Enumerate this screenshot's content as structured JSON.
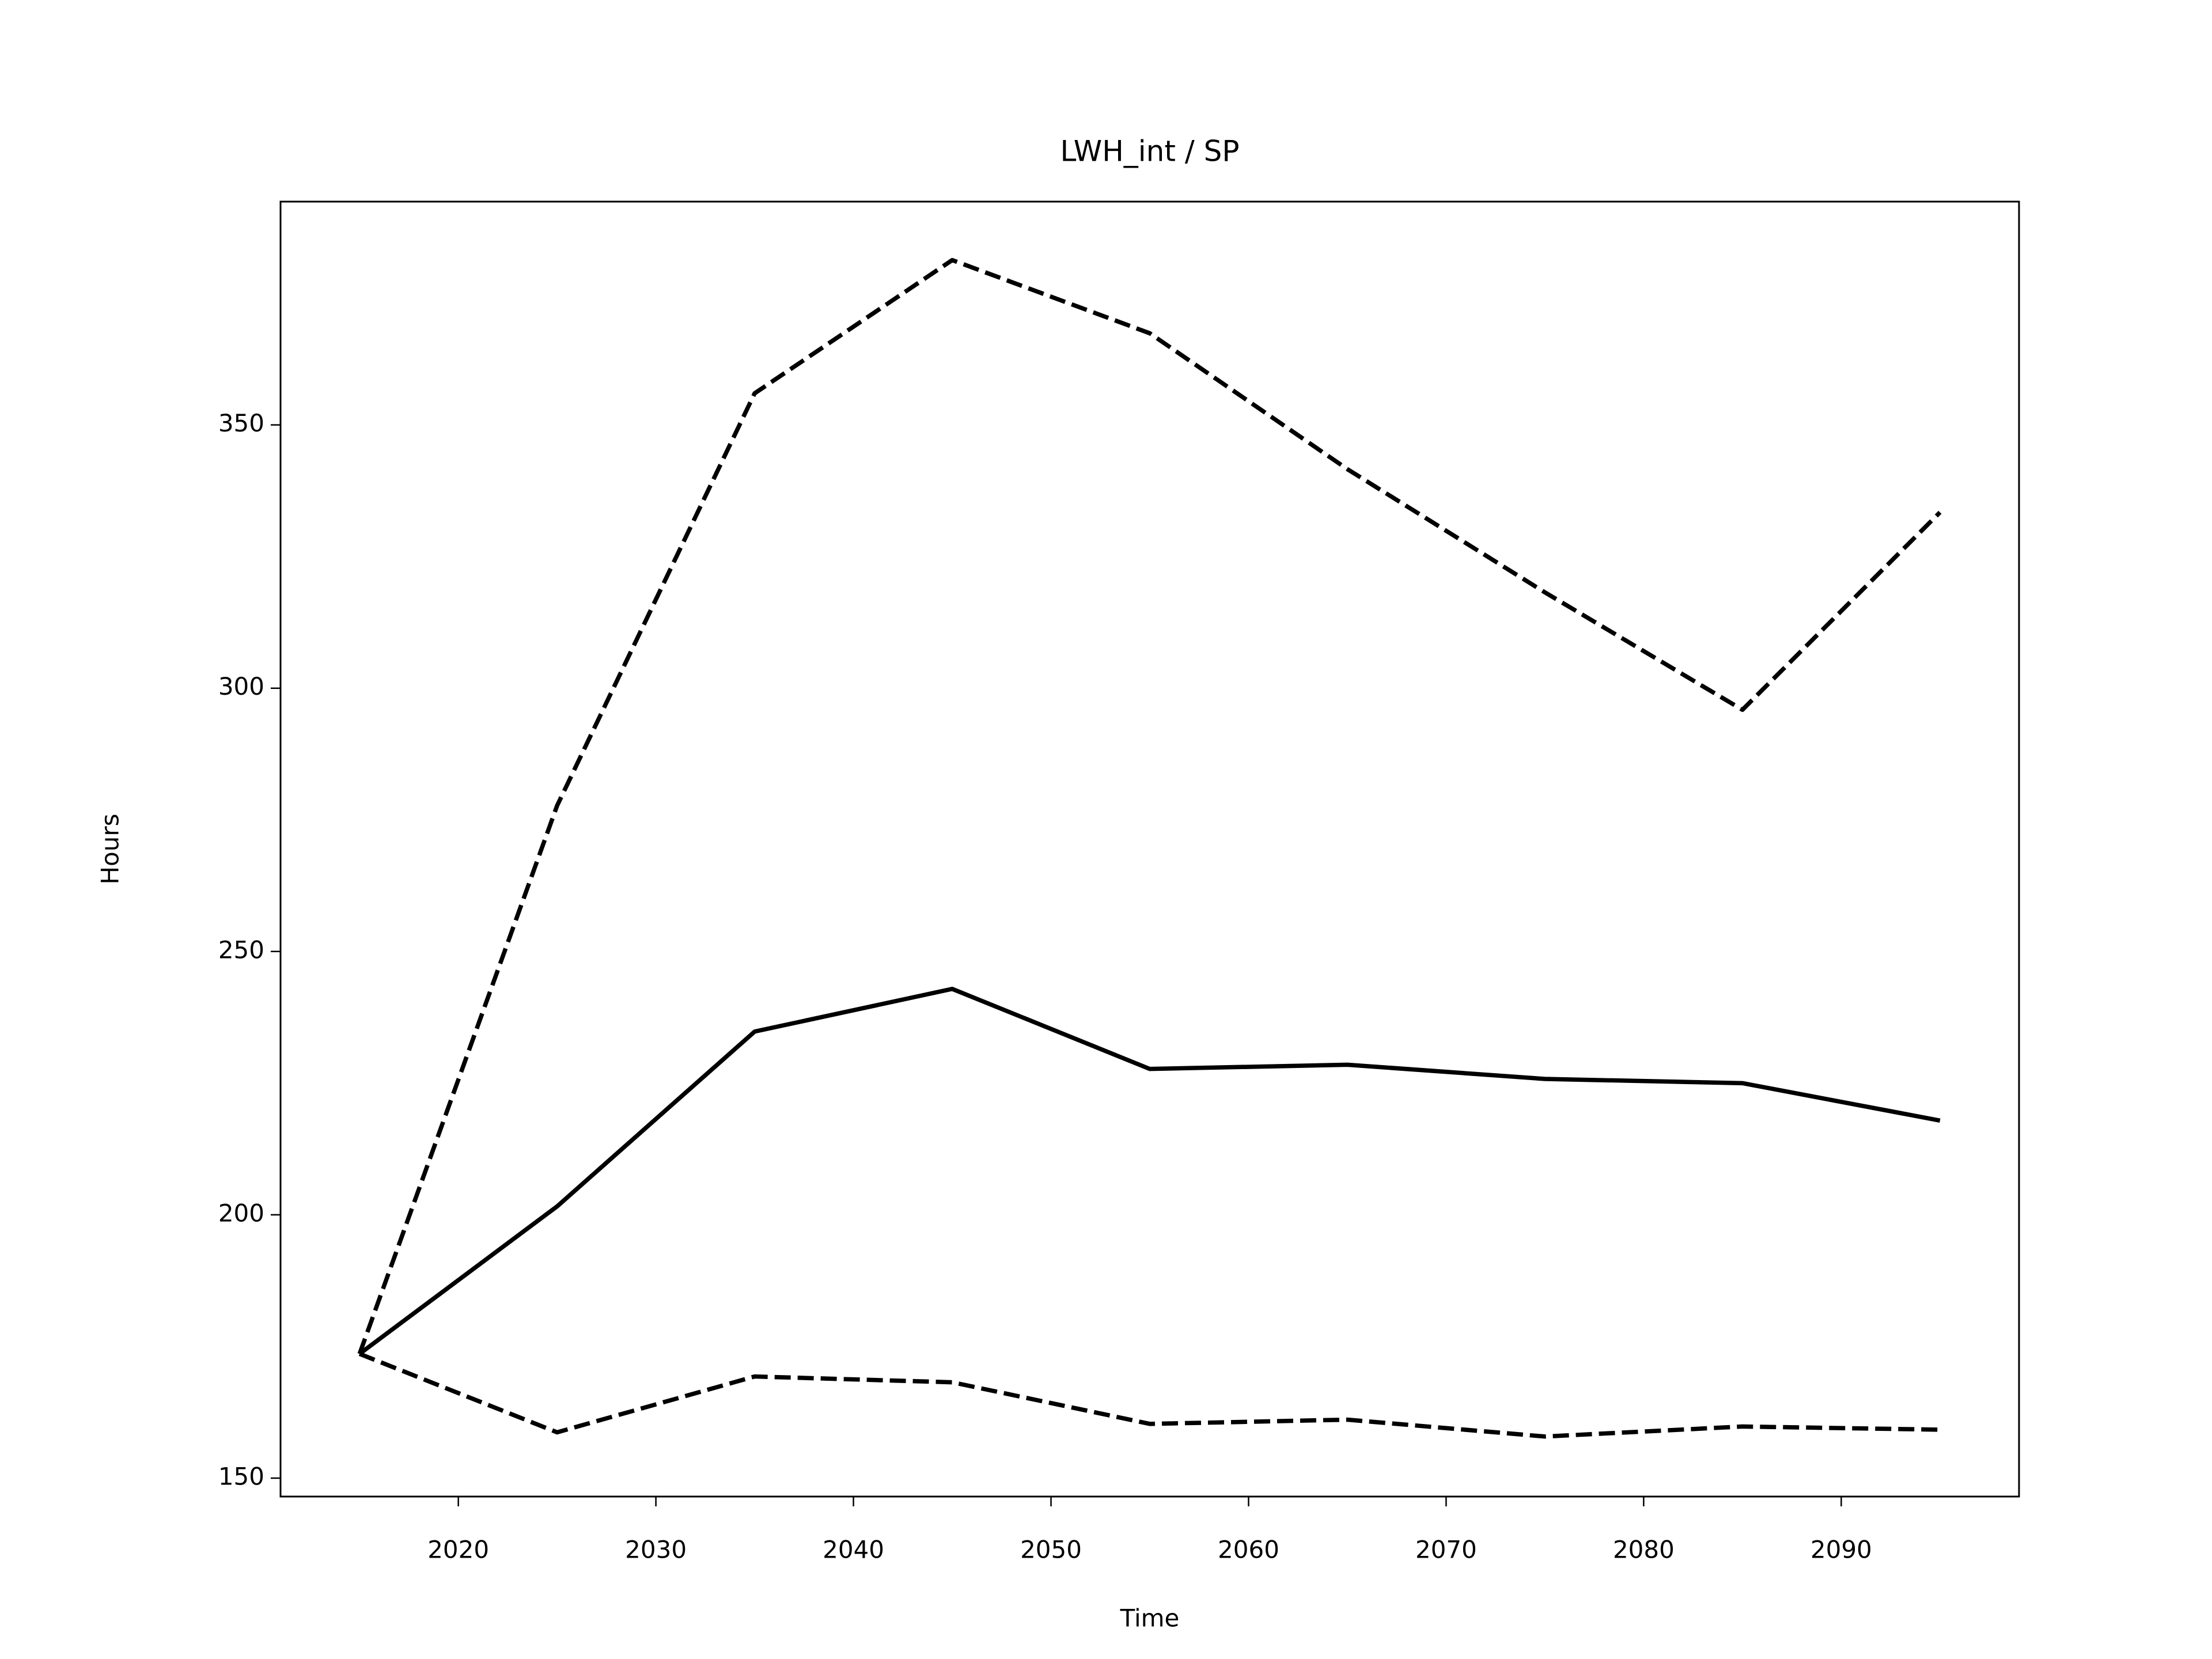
{
  "chart_data": {
    "type": "line",
    "title": "LWH_int / SP",
    "xlabel": "Time",
    "ylabel": "Hours",
    "x": [
      2015,
      2025,
      2035,
      2045,
      2055,
      2065,
      2075,
      2085,
      2095
    ],
    "series": [
      {
        "color": "#000000",
        "linestyle": "solid",
        "values": [
          173.6,
          201.6,
          234.8,
          242.9,
          227.7,
          228.5,
          225.8,
          225.0,
          217.9
        ]
      },
      {
        "color": "#000000",
        "linestyle": "dashed",
        "values": [
          173.6,
          277.7,
          356.0,
          381.3,
          367.4,
          341.6,
          318.2,
          295.9,
          333.4
        ]
      },
      {
        "color": "#000000",
        "linestyle": "dashed",
        "values": [
          173.6,
          158.7,
          169.3,
          168.2,
          160.3,
          161.1,
          157.9,
          159.8,
          159.2
        ]
      }
    ],
    "xlim": [
      2011,
      2099
    ],
    "xticks": [
      2020,
      2030,
      2040,
      2050,
      2060,
      2070,
      2080,
      2090
    ],
    "ylim": [
      146.5,
      392.4
    ],
    "yticks": [
      150,
      200,
      250,
      300,
      350
    ],
    "grid": false
  }
}
